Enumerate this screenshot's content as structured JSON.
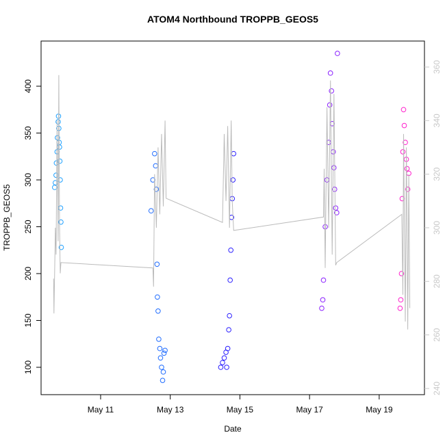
{
  "chart_data": {
    "type": "scatter",
    "title": "ATOM4 Northbound TROPPB_GEOS5",
    "x_label": "Date",
    "y_label": "TROPPB_GEOS5",
    "xlim": [
      9.29,
      20.3
    ],
    "xticks": [
      {
        "value": 11,
        "label": "May 11"
      },
      {
        "value": 13,
        "label": "May 13"
      },
      {
        "value": 15,
        "label": "May 15"
      },
      {
        "value": 17,
        "label": "May 17"
      },
      {
        "value": 19,
        "label": "May 19"
      }
    ],
    "ylim": [
      70.8,
      448.2
    ],
    "yticks": [
      100,
      150,
      200,
      250,
      300,
      350,
      400
    ],
    "y2lim": [
      237.7,
      369.7
    ],
    "y2ticks": [
      240,
      260,
      280,
      300,
      320,
      340,
      360
    ],
    "y2_color": "#c8c8c8",
    "series": [
      {
        "type": "scatter",
        "color": "#1ea0ff",
        "x": [
          9.68,
          9.7,
          9.72,
          9.73,
          9.75,
          9.76,
          9.78,
          9.79,
          9.8,
          9.81,
          9.82,
          9.83,
          9.84,
          9.85,
          9.86,
          9.87
        ],
        "values": [
          292,
          297,
          305,
          318,
          330,
          345,
          362,
          368,
          355,
          340,
          335,
          320,
          300,
          270,
          255,
          228
        ]
      },
      {
        "type": "scatter",
        "color": "#1f6cff",
        "x": [
          12.45,
          12.5,
          12.55,
          12.58,
          12.6,
          12.62,
          12.63,
          12.65,
          12.67,
          12.7,
          12.72,
          12.75,
          12.78,
          12.8,
          12.82,
          12.85
        ],
        "values": [
          267,
          300,
          328,
          315,
          290,
          210,
          175,
          160,
          130,
          120,
          110,
          100,
          86,
          95,
          115,
          118
        ]
      },
      {
        "type": "scatter",
        "color": "#2a1eff",
        "x": [
          14.45,
          14.5,
          14.55,
          14.6,
          14.62,
          14.65,
          14.68,
          14.7,
          14.72,
          14.74,
          14.76,
          14.78,
          14.8,
          14.82
        ],
        "values": [
          100,
          105,
          110,
          116,
          100,
          120,
          140,
          155,
          193,
          225,
          260,
          280,
          300,
          328
        ]
      },
      {
        "type": "scatter",
        "color": "#8a1fff",
        "x": [
          17.35,
          17.38,
          17.4,
          17.45,
          17.5,
          17.55,
          17.58,
          17.6,
          17.63,
          17.65,
          17.68,
          17.7,
          17.72,
          17.75,
          17.78,
          17.8
        ],
        "values": [
          163,
          172,
          193,
          250,
          300,
          340,
          380,
          414,
          395,
          360,
          330,
          313,
          290,
          270,
          265,
          435
        ]
      },
      {
        "type": "scatter",
        "color": "#ff1fcc",
        "x": [
          19.6,
          19.62,
          19.64,
          19.66,
          19.68,
          19.7,
          19.72,
          19.75,
          19.78,
          19.8,
          19.82,
          19.85
        ],
        "values": [
          163,
          172,
          200,
          280,
          330,
          375,
          358,
          340,
          322,
          312,
          290,
          307
        ]
      },
      {
        "type": "line",
        "axis": "y2",
        "color": "#bbbbbb",
        "x": [
          9.65,
          9.66,
          9.7,
          9.72,
          9.75,
          9.78,
          9.8,
          9.82,
          9.84,
          9.86,
          12.5,
          12.52,
          12.55,
          12.6,
          12.65,
          12.7,
          12.75,
          12.8,
          12.85,
          12.88,
          14.5,
          14.55,
          14.6,
          14.65,
          14.7,
          14.75,
          14.78,
          14.82,
          17.4,
          17.42,
          17.45,
          17.5,
          17.55,
          17.6,
          17.65,
          17.7,
          17.75,
          17.78,
          19.65,
          19.68,
          19.7,
          19.75,
          19.78,
          19.82,
          19.85,
          19.88
        ],
        "values": [
          281,
          268,
          300,
          290,
          340,
          295,
          357,
          300,
          283,
          287,
          285,
          278,
          320,
          300,
          330,
          305,
          335,
          308,
          340,
          311,
          302,
          335,
          310,
          338,
          300,
          340,
          310,
          299,
          304,
          322,
          285,
          345,
          300,
          355,
          290,
          350,
          286,
          287,
          305,
          275,
          335,
          265,
          330,
          262,
          320,
          270
        ]
      }
    ]
  }
}
